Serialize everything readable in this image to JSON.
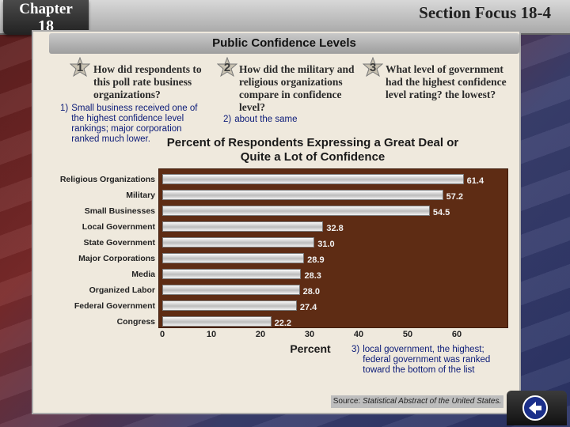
{
  "header": {
    "chapter_word": "Chapter",
    "chapter_number": "18",
    "section": "Section Focus 18-4"
  },
  "panel_title": "Public Confidence Levels",
  "questions": [
    {
      "number": "1",
      "text": "How did respondents to this poll rate business organizations?"
    },
    {
      "number": "2",
      "text": "How did the military and religious organizations compare in confidence level?"
    },
    {
      "number": "3",
      "text": "What level of government had the highest confidence level rating? the lowest?"
    }
  ],
  "answers": [
    {
      "number": "1)",
      "text": "Small business received one of the highest confidence level rankings; major corporation ranked much lower."
    },
    {
      "number": "2)",
      "text": "about the same"
    },
    {
      "number": "3)",
      "text": "local government, the highest; federal government was ranked toward the bottom of the list"
    }
  ],
  "chart_data": {
    "type": "bar",
    "orientation": "horizontal",
    "title": "Percent of Respondents Expressing a Great Deal or Quite a Lot of Confidence",
    "xlabel": "Percent",
    "ylabel": "",
    "xlim": [
      0,
      70
    ],
    "xticks": [
      0,
      10,
      20,
      30,
      40,
      50,
      60
    ],
    "categories": [
      "Religious Organizations",
      "Military",
      "Small Businesses",
      "Local Government",
      "State Government",
      "Major Corporations",
      "Media",
      "Organized Labor",
      "Federal Government",
      "Congress"
    ],
    "values": [
      61.4,
      57.2,
      54.5,
      32.8,
      31.0,
      28.9,
      28.3,
      28.0,
      27.4,
      22.2
    ],
    "value_labels": [
      "61.4",
      "57.2",
      "54.5",
      "32.8",
      "31.0",
      "28.9",
      "28.3",
      "28.0",
      "27.4",
      "22.2"
    ],
    "colors": {
      "plot_background": "#5e2c14",
      "bar": "#e0e0e0"
    }
  },
  "source": {
    "prefix": "Source:",
    "text": "Statistical Abstract of the United States."
  },
  "nav": {
    "back_icon": "back-arrow-icon"
  }
}
